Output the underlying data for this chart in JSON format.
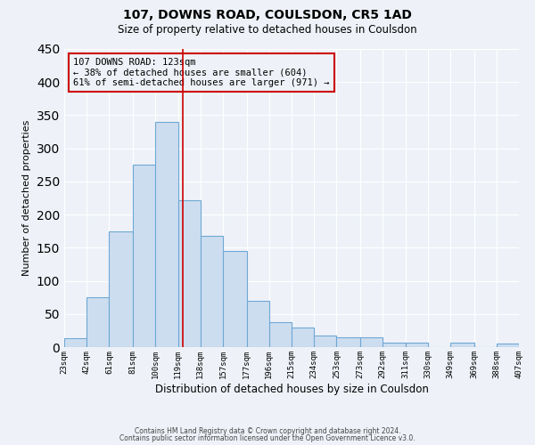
{
  "title": "107, DOWNS ROAD, COULSDON, CR5 1AD",
  "subtitle": "Size of property relative to detached houses in Coulsdon",
  "xlabel": "Distribution of detached houses by size in Coulsdon",
  "ylabel": "Number of detached properties",
  "bar_edges": [
    23,
    42,
    61,
    81,
    100,
    119,
    138,
    157,
    177,
    196,
    215,
    234,
    253,
    273,
    292,
    311,
    330,
    349,
    369,
    388,
    407
  ],
  "bar_heights": [
    13,
    75,
    175,
    275,
    340,
    222,
    168,
    145,
    70,
    38,
    30,
    18,
    15,
    15,
    7,
    7,
    0,
    7,
    0,
    5
  ],
  "bar_color": "#cdddf0",
  "bar_edgecolor": "#6fa8d4",
  "property_line_x": 123,
  "property_line_color": "#cc0000",
  "annotation_title": "107 DOWNS ROAD: 123sqm",
  "annotation_line1": "← 38% of detached houses are smaller (604)",
  "annotation_line2": "61% of semi-detached houses are larger (971) →",
  "annotation_box_color": "#cc0000",
  "ylim": [
    0,
    450
  ],
  "tick_labels": [
    "23sqm",
    "42sqm",
    "61sqm",
    "81sqm",
    "100sqm",
    "119sqm",
    "138sqm",
    "157sqm",
    "177sqm",
    "196sqm",
    "215sqm",
    "234sqm",
    "253sqm",
    "273sqm",
    "292sqm",
    "311sqm",
    "330sqm",
    "349sqm",
    "369sqm",
    "388sqm",
    "407sqm"
  ],
  "background_color": "#eef2f8",
  "grid_color": "#ffffff",
  "footer_line1": "Contains HM Land Registry data © Crown copyright and database right 2024.",
  "footer_line2": "Contains public sector information licensed under the Open Government Licence v3.0."
}
